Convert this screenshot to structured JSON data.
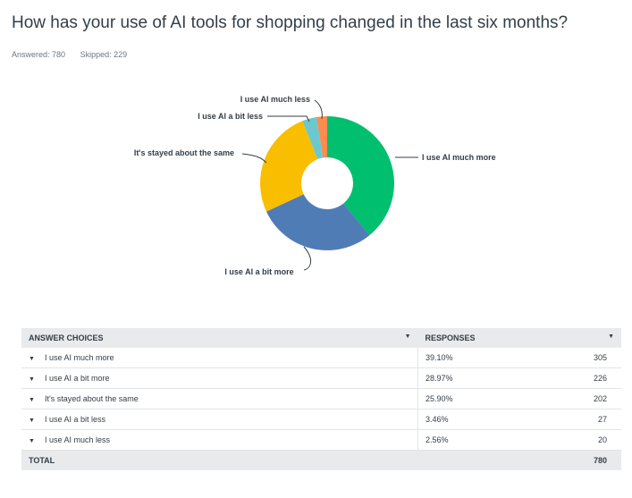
{
  "question": {
    "title": "How has your use of AI tools for shopping changed in the last six months?",
    "answered": "Answered: 780",
    "skipped": "Skipped: 229"
  },
  "chart_data": {
    "type": "pie",
    "donut": true,
    "categories": [
      "I use AI much more",
      "I use AI a bit more",
      "It's stayed about the same",
      "I use AI a bit less",
      "I use AI much less"
    ],
    "values": [
      39.1,
      28.97,
      25.9,
      3.46,
      2.56
    ],
    "colors": [
      "#00bf6f",
      "#507cb6",
      "#f9be00",
      "#6bc8cd",
      "#ff8b4f"
    ],
    "legend": "none"
  },
  "table": {
    "headers": {
      "choices": "ANSWER CHOICES",
      "responses": "RESPONSES"
    },
    "rows": [
      {
        "choice": "I use AI much more",
        "percent": "39.10%",
        "count": "305"
      },
      {
        "choice": "I use AI a bit more",
        "percent": "28.97%",
        "count": "226"
      },
      {
        "choice": "It's stayed about the same",
        "percent": "25.90%",
        "count": "202"
      },
      {
        "choice": "I use AI a bit less",
        "percent": "3.46%",
        "count": "27"
      },
      {
        "choice": "I use AI much less",
        "percent": "2.56%",
        "count": "20"
      }
    ],
    "total": {
      "label": "TOTAL",
      "count": "780"
    }
  },
  "icons": {
    "caret": "caret-down-icon"
  }
}
